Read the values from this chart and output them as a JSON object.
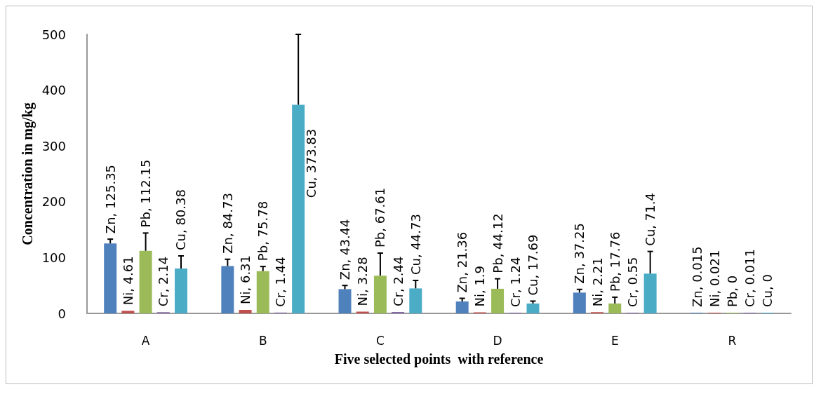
{
  "chart_data": {
    "type": "bar",
    "xlabel": "Five selected points  with reference",
    "ylabel": "Concentration in mg/kg",
    "categories": [
      "A",
      "B",
      "C",
      "D",
      "E",
      "R"
    ],
    "series": [
      {
        "color": "#4f81bd",
        "values": [
          125.35,
          84.73,
          43.44,
          21.36,
          37.25,
          0.015
        ],
        "value_labels": [
          "Zn, 125.35",
          "Zn, 84.73",
          "Zn, 43.44",
          "Zn, 21.36",
          "Zn, 37.25",
          "Zn, 0.015"
        ],
        "errors": [
          [
            125.35,
            133
          ],
          [
            84.73,
            97
          ],
          [
            43.44,
            50
          ],
          [
            21.36,
            27
          ],
          [
            37.25,
            43
          ],
          null
        ]
      },
      {
        "color": "#c0504d",
        "values": [
          4.61,
          6.31,
          3.28,
          1.9,
          2.21,
          0.021
        ],
        "value_labels": [
          "Ni, 4.61",
          "Ni, 6.31",
          "Ni, 3.28",
          "Ni, 1.9",
          "Ni, 2.21",
          "Ni, 0.021"
        ]
      },
      {
        "color": "#9bbb59",
        "values": [
          112.15,
          75.78,
          67.61,
          44.12,
          17.76,
          0
        ],
        "value_labels": [
          "Pb, 112.15",
          "Pb, 75.78",
          "Pb, 67.61",
          "Pb, 44.12",
          "Pb, 17.76",
          "Pb, 0"
        ],
        "errors": [
          [
            112.15,
            144
          ],
          [
            75.78,
            84
          ],
          [
            67.61,
            108
          ],
          [
            44.12,
            62
          ],
          [
            17.76,
            29
          ],
          null
        ]
      },
      {
        "color": "#8064a2",
        "values": [
          2.14,
          1.44,
          2.44,
          1.24,
          0.55,
          0.011
        ],
        "value_labels": [
          "Cr, 2.14",
          "Cr, 1.44",
          "Cr, 2.44",
          "Cr, 1.24",
          "Cr, 0.55",
          "Cr, 0.011"
        ]
      },
      {
        "color": "#4bacc6",
        "values": [
          80.38,
          373.83,
          44.73,
          17.69,
          71.4,
          0
        ],
        "value_labels": [
          "Cu, 80.38",
          "Cu, 373.83",
          "Cu, 44.73",
          "Cu, 17.69",
          "Cu, 71.4",
          "Cu, 0"
        ],
        "errors": [
          [
            80.38,
            103
          ],
          [
            373.83,
            500
          ],
          [
            44.73,
            59
          ],
          [
            17.69,
            22
          ],
          [
            71.4,
            111
          ],
          null
        ]
      }
    ],
    "ylim": [
      0,
      500
    ],
    "yticks": [
      0,
      100,
      200,
      300,
      400,
      500
    ],
    "grid": false
  }
}
